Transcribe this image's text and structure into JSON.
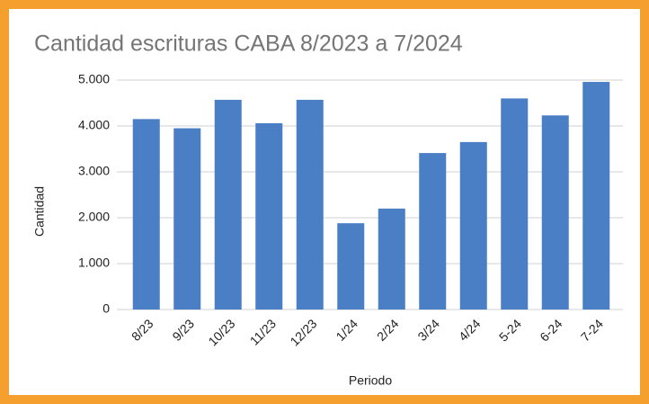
{
  "chart_data": {
    "type": "bar",
    "title": "Cantidad escrituras CABA 8/2023 a 7/2024",
    "x_label": "Periodo",
    "y_label": "Cantidad",
    "categories": [
      "8/23",
      "9/23",
      "10/23",
      "11/23",
      "12/23",
      "1/24",
      "2/24",
      "3/24",
      "4/24",
      "5-24",
      "6-24",
      "7-24"
    ],
    "values": [
      4150,
      3950,
      4570,
      4060,
      4570,
      1880,
      2200,
      3410,
      3650,
      4600,
      4230,
      4960
    ],
    "color": "#4a7ec5",
    "ylim": [
      0,
      5000
    ],
    "yticks": [
      0,
      {
        "value": 1000,
        "label": "1.000"
      },
      {
        "value": 2000,
        "label": "2.000"
      },
      {
        "value": 3000,
        "label": "3.000"
      },
      {
        "value": 4000,
        "label": "4.000"
      },
      {
        "value": 5000,
        "label": "5.000"
      }
    ],
    "grid": true
  }
}
